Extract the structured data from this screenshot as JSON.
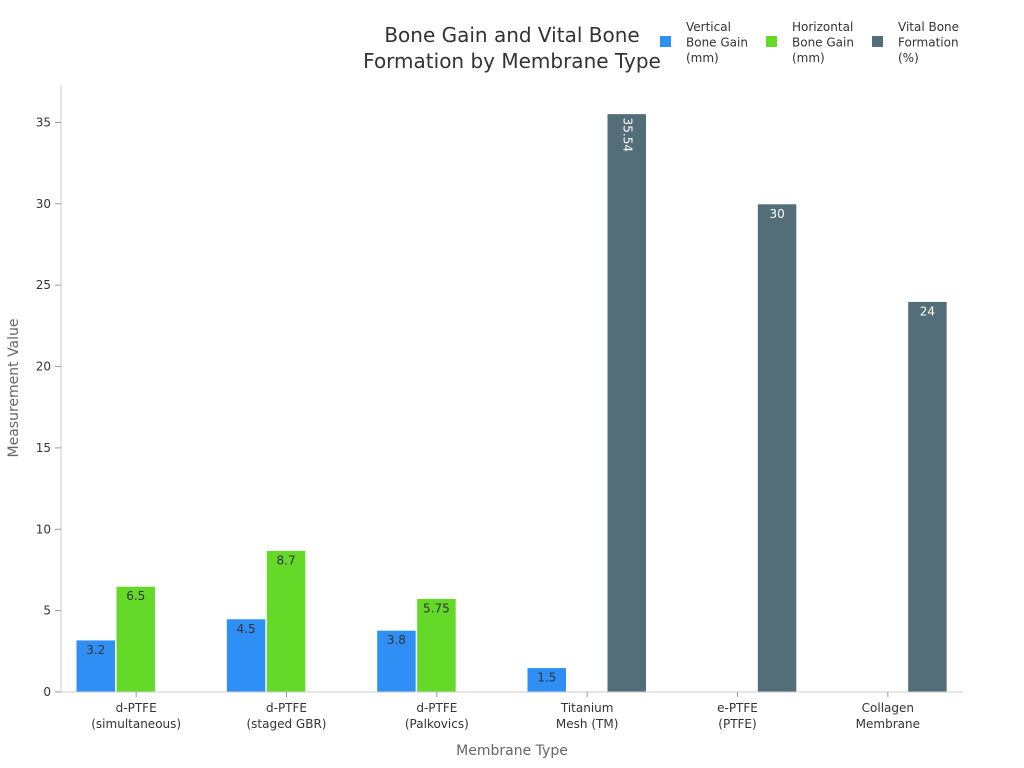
{
  "chart_data": {
    "type": "bar",
    "title": [
      "Bone Gain and Vital Bone",
      "Formation by Membrane Type"
    ],
    "xlabel": "Membrane Type",
    "ylabel": "Measurement Value",
    "ylim": [
      0,
      37.3
    ],
    "yticks": [
      0,
      5,
      10,
      15,
      20,
      25,
      30,
      35
    ],
    "grid": false,
    "legend_position": "top-right",
    "categories": [
      [
        "d-PTFE",
        "(simultaneous)"
      ],
      [
        "d-PTFE",
        "(staged GBR)"
      ],
      [
        "d-PTFE",
        "(Palkovics)"
      ],
      [
        "Titanium",
        "Mesh (TM)"
      ],
      [
        "e-PTFE",
        "(PTFE)"
      ],
      [
        "Collagen",
        "Membrane"
      ]
    ],
    "series": [
      {
        "name": [
          "Vertical",
          "Bone Gain",
          "(mm)"
        ],
        "color": "#2f8ff5",
        "values": [
          3.2,
          4.5,
          3.8,
          1.5,
          null,
          null
        ],
        "labels": [
          "3.2",
          "4.5",
          "3.8",
          "1.5",
          null,
          null
        ]
      },
      {
        "name": [
          "Horizontal",
          "Bone Gain",
          "(mm)"
        ],
        "color": "#64d928",
        "values": [
          6.5,
          8.7,
          5.75,
          null,
          null,
          null
        ],
        "labels": [
          "6.5",
          "8.7",
          "5.75",
          null,
          null,
          null
        ]
      },
      {
        "name": [
          "Vital Bone",
          "Formation",
          "(%)"
        ],
        "color": "#536e79",
        "values": [
          null,
          null,
          null,
          35.54,
          30,
          24
        ],
        "labels": [
          null,
          null,
          null,
          "35.54",
          "30",
          "24"
        ]
      }
    ]
  }
}
